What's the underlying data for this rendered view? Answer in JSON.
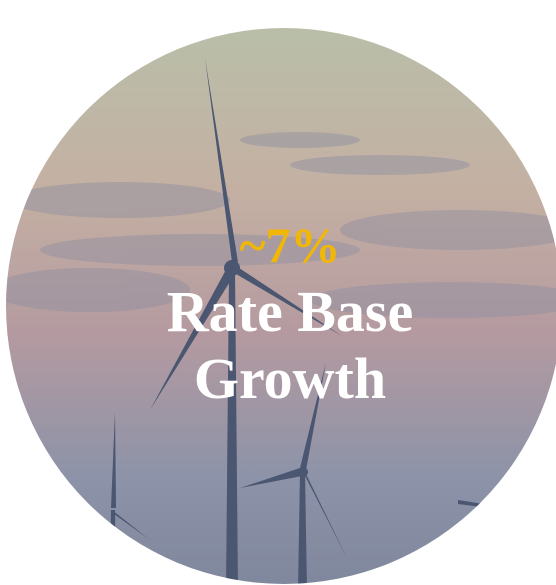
{
  "headline": "~7%",
  "label_lines": [
    "Rate Base",
    "Growth"
  ]
}
